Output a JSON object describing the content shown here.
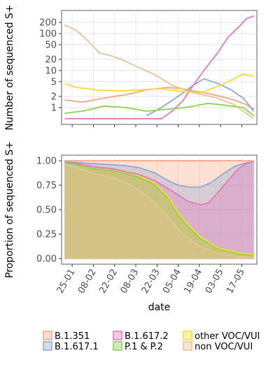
{
  "chart_data": [
    {
      "type": "line",
      "ylabel": "Number of sequenced S+",
      "yscale": "log",
      "y_ticks": [
        1,
        2,
        5,
        10,
        20,
        50,
        100,
        200
      ],
      "y_tick_labels": [
        "1",
        "2",
        "5",
        "10",
        "20",
        "50",
        "100",
        "200"
      ],
      "x_ticks": [
        "25-01",
        "08-02",
        "22-02",
        "08-03",
        "22-03",
        "05-04",
        "19-04",
        "03-05",
        "17-05"
      ],
      "grid": true,
      "series": [
        {
          "name": "B.1.351",
          "color": "#f4a582",
          "points": [
            [
              "2021-01-20",
              1.6
            ],
            [
              "2021-02-01",
              1.4
            ],
            [
              "2021-02-15",
              1.8
            ],
            [
              "2021-03-01",
              2.2
            ],
            [
              "2021-03-15",
              3.0
            ],
            [
              "2021-03-29",
              3.5
            ],
            [
              "2021-04-08",
              3.2
            ],
            [
              "2021-04-20",
              2.6
            ],
            [
              "2021-05-03",
              2.0
            ],
            [
              "2021-05-12",
              1.6
            ],
            [
              "2021-05-20",
              1.2
            ],
            [
              "2021-05-25",
              0.9
            ]
          ]
        },
        {
          "name": "B.1.617.1",
          "color": "#92a8d1",
          "points": [
            [
              "2021-03-15",
              0.6
            ],
            [
              "2021-03-25",
              1.0
            ],
            [
              "2021-04-05",
              2.0
            ],
            [
              "2021-04-15",
              4.0
            ],
            [
              "2021-04-22",
              6.0
            ],
            [
              "2021-05-01",
              4.5
            ],
            [
              "2021-05-10",
              3.0
            ],
            [
              "2021-05-18",
              1.8
            ],
            [
              "2021-05-25",
              0.8
            ]
          ]
        },
        {
          "name": "B.1.617.2",
          "color": "#e377c2",
          "points": [
            [
              "2021-01-20",
              0.5
            ],
            [
              "2021-03-25",
              0.5
            ],
            [
              "2021-04-01",
              0.8
            ],
            [
              "2021-04-08",
              1.5
            ],
            [
              "2021-04-15",
              4.0
            ],
            [
              "2021-04-22",
              10
            ],
            [
              "2021-05-01",
              30
            ],
            [
              "2021-05-08",
              80
            ],
            [
              "2021-05-15",
              150
            ],
            [
              "2021-05-20",
              250
            ],
            [
              "2021-05-25",
              300
            ]
          ]
        },
        {
          "name": "P.1 & P.2",
          "color": "#8fd14f",
          "points": [
            [
              "2021-01-20",
              0.7
            ],
            [
              "2021-02-01",
              0.8
            ],
            [
              "2021-02-15",
              1.1
            ],
            [
              "2021-03-01",
              1.0
            ],
            [
              "2021-03-15",
              0.8
            ],
            [
              "2021-03-29",
              0.9
            ],
            [
              "2021-04-10",
              1.0
            ],
            [
              "2021-04-25",
              1.3
            ],
            [
              "2021-05-10",
              1.1
            ],
            [
              "2021-05-18",
              1.0
            ],
            [
              "2021-05-25",
              0.6
            ]
          ]
        },
        {
          "name": "other VOC/VUI",
          "color": "#ffd92f",
          "points": [
            [
              "2021-01-20",
              4.5
            ],
            [
              "2021-01-28",
              3.5
            ],
            [
              "2021-02-10",
              3.0
            ],
            [
              "2021-02-25",
              2.8
            ],
            [
              "2021-03-10",
              3.0
            ],
            [
              "2021-03-25",
              3.2
            ],
            [
              "2021-04-05",
              2.8
            ],
            [
              "2021-04-20",
              2.5
            ],
            [
              "2021-05-03",
              4.0
            ],
            [
              "2021-05-12",
              6.0
            ],
            [
              "2021-05-18",
              8.0
            ],
            [
              "2021-05-25",
              7.0
            ]
          ]
        },
        {
          "name": "non VOC/VUI",
          "color": "#e5c494",
          "points": [
            [
              "2021-01-20",
              170
            ],
            [
              "2021-01-28",
              120
            ],
            [
              "2021-02-05",
              60
            ],
            [
              "2021-02-12",
              30
            ],
            [
              "2021-02-20",
              25
            ],
            [
              "2021-03-01",
              18
            ],
            [
              "2021-03-10",
              12
            ],
            [
              "2021-03-20",
              8
            ],
            [
              "2021-04-01",
              4
            ],
            [
              "2021-04-15",
              2.5
            ],
            [
              "2021-05-01",
              1.8
            ],
            [
              "2021-05-12",
              1.2
            ],
            [
              "2021-05-20",
              0.7
            ],
            [
              "2021-05-25",
              0.5
            ]
          ]
        }
      ]
    },
    {
      "type": "area",
      "stacked": true,
      "xlabel": "date",
      "ylabel": "Proportion of sequenced S+",
      "ylim": [
        0,
        1
      ],
      "y_ticks": [
        0,
        0.25,
        0.5,
        0.75,
        1
      ],
      "y_tick_labels": [
        "0.00",
        "0.25",
        "0.50",
        "0.75",
        "1.00"
      ],
      "x_ticks": [
        "25-01",
        "08-02",
        "22-02",
        "08-03",
        "22-03",
        "05-04",
        "19-04",
        "03-05",
        "17-05"
      ],
      "grid": true,
      "stack_order": [
        "non VOC/VUI",
        "P.1 & P.2",
        "other VOC/VUI",
        "B.1.617.2",
        "B.1.617.1",
        "B.1.351"
      ],
      "cumulative_boundaries": [
        {
          "name": "non VOC/VUI",
          "color": "#e5c494",
          "points": [
            [
              "2021-01-20",
              0.97
            ],
            [
              "2021-01-28",
              0.93
            ],
            [
              "2021-02-08",
              0.87
            ],
            [
              "2021-02-20",
              0.83
            ],
            [
              "2021-03-01",
              0.78
            ],
            [
              "2021-03-10",
              0.7
            ],
            [
              "2021-03-20",
              0.58
            ],
            [
              "2021-03-29",
              0.43
            ],
            [
              "2021-04-05",
              0.3
            ],
            [
              "2021-04-12",
              0.2
            ],
            [
              "2021-04-20",
              0.12
            ],
            [
              "2021-05-01",
              0.05
            ],
            [
              "2021-05-15",
              0.02
            ],
            [
              "2021-05-25",
              0.01
            ]
          ]
        },
        {
          "name": "P.1 & P.2",
          "color": "#8fd14f",
          "points": [
            [
              "2021-01-20",
              0.98
            ],
            [
              "2021-01-28",
              0.96
            ],
            [
              "2021-02-08",
              0.92
            ],
            [
              "2021-02-20",
              0.9
            ],
            [
              "2021-03-01",
              0.87
            ],
            [
              "2021-03-10",
              0.83
            ],
            [
              "2021-03-20",
              0.76
            ],
            [
              "2021-03-29",
              0.62
            ],
            [
              "2021-04-05",
              0.45
            ],
            [
              "2021-04-12",
              0.32
            ],
            [
              "2021-04-20",
              0.2
            ],
            [
              "2021-05-01",
              0.1
            ],
            [
              "2021-05-15",
              0.05
            ],
            [
              "2021-05-25",
              0.03
            ]
          ]
        },
        {
          "name": "other VOC/VUI",
          "color": "#ffd92f",
          "points": [
            [
              "2021-01-20",
              0.99
            ],
            [
              "2021-01-28",
              0.97
            ],
            [
              "2021-02-08",
              0.94
            ],
            [
              "2021-02-20",
              0.92
            ],
            [
              "2021-03-01",
              0.89
            ],
            [
              "2021-03-10",
              0.85
            ],
            [
              "2021-03-20",
              0.78
            ],
            [
              "2021-03-29",
              0.64
            ],
            [
              "2021-04-05",
              0.47
            ],
            [
              "2021-04-12",
              0.34
            ],
            [
              "2021-04-20",
              0.22
            ],
            [
              "2021-05-01",
              0.11
            ],
            [
              "2021-05-15",
              0.06
            ],
            [
              "2021-05-25",
              0.04
            ]
          ]
        },
        {
          "name": "B.1.617.2",
          "color": "#e377c2",
          "points": [
            [
              "2021-01-20",
              0.99
            ],
            [
              "2021-01-28",
              0.97
            ],
            [
              "2021-02-08",
              0.94
            ],
            [
              "2021-02-20",
              0.92
            ],
            [
              "2021-03-01",
              0.89
            ],
            [
              "2021-03-10",
              0.86
            ],
            [
              "2021-03-20",
              0.8
            ],
            [
              "2021-03-29",
              0.72
            ],
            [
              "2021-04-05",
              0.65
            ],
            [
              "2021-04-12",
              0.58
            ],
            [
              "2021-04-20",
              0.55
            ],
            [
              "2021-04-25",
              0.57
            ],
            [
              "2021-05-01",
              0.67
            ],
            [
              "2021-05-08",
              0.8
            ],
            [
              "2021-05-15",
              0.92
            ],
            [
              "2021-05-20",
              0.97
            ],
            [
              "2021-05-25",
              0.99
            ]
          ]
        },
        {
          "name": "B.1.617.1",
          "color": "#92a8d1",
          "points": [
            [
              "2021-01-20",
              0.99
            ],
            [
              "2021-02-08",
              0.97
            ],
            [
              "2021-02-20",
              0.96
            ],
            [
              "2021-03-01",
              0.95
            ],
            [
              "2021-03-10",
              0.93
            ],
            [
              "2021-03-20",
              0.88
            ],
            [
              "2021-03-29",
              0.8
            ],
            [
              "2021-04-05",
              0.75
            ],
            [
              "2021-04-12",
              0.73
            ],
            [
              "2021-04-20",
              0.73
            ],
            [
              "2021-04-27",
              0.78
            ],
            [
              "2021-05-05",
              0.87
            ],
            [
              "2021-05-12",
              0.94
            ],
            [
              "2021-05-20",
              0.98
            ],
            [
              "2021-05-25",
              0.99
            ]
          ]
        },
        {
          "name": "B.1.351",
          "color": "#f4a582",
          "points": [
            [
              "2021-01-20",
              1.0
            ],
            [
              "2021-05-25",
              1.0
            ]
          ]
        }
      ]
    }
  ],
  "legend": {
    "items": [
      {
        "label": "B.1.351",
        "color": "#f4a582"
      },
      {
        "label": "B.1.617.1",
        "color": "#92a8d1"
      },
      {
        "label": "B.1.617.2",
        "color": "#e377c2"
      },
      {
        "label": "P.1 & P.2",
        "color": "#8fd14f"
      },
      {
        "label": "other VOC/VUI",
        "color": "#ffd92f"
      },
      {
        "label": "non VOC/VUI",
        "color": "#e5c494"
      }
    ]
  }
}
